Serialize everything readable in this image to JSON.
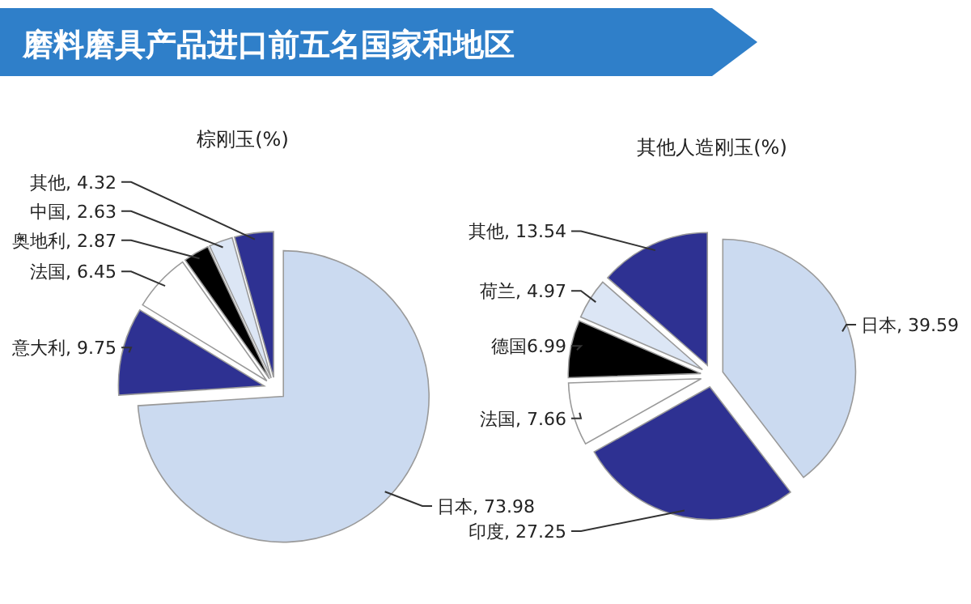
{
  "chart_data": [
    {
      "type": "pie",
      "title": "磨料磨具产品进口前五名国家和地区",
      "subtitle": "棕刚玉(%)",
      "categories": [
        "日本",
        "意大利",
        "法国",
        "奥地利",
        "中国",
        "其他"
      ],
      "values": [
        73.98,
        9.75,
        6.45,
        2.87,
        2.63,
        4.32
      ],
      "colors": [
        "#cbdaf0",
        "#2e3192",
        "#ffffff",
        "#000000",
        "#dce6f5",
        "#2e3192"
      ],
      "value_labels": [
        ", 73.98",
        ", 9.75",
        ", 6.45",
        ", 2.87",
        ", 2.63",
        ", 4.32"
      ]
    },
    {
      "type": "pie",
      "title": "其他人造刚玉(%)",
      "categories": [
        "日本",
        "印度",
        "法国",
        "德国",
        "荷兰",
        "其他"
      ],
      "values": [
        39.59,
        27.25,
        7.66,
        6.99,
        4.97,
        13.54
      ],
      "colors": [
        "#cbdaf0",
        "#2e3192",
        "#ffffff",
        "#000000",
        "#dce6f5",
        "#2e3192"
      ],
      "value_labels": [
        ", 39.59",
        ", 27.25",
        ", 7.66",
        "6.99",
        ", 4.97",
        ", 13.54"
      ]
    }
  ]
}
